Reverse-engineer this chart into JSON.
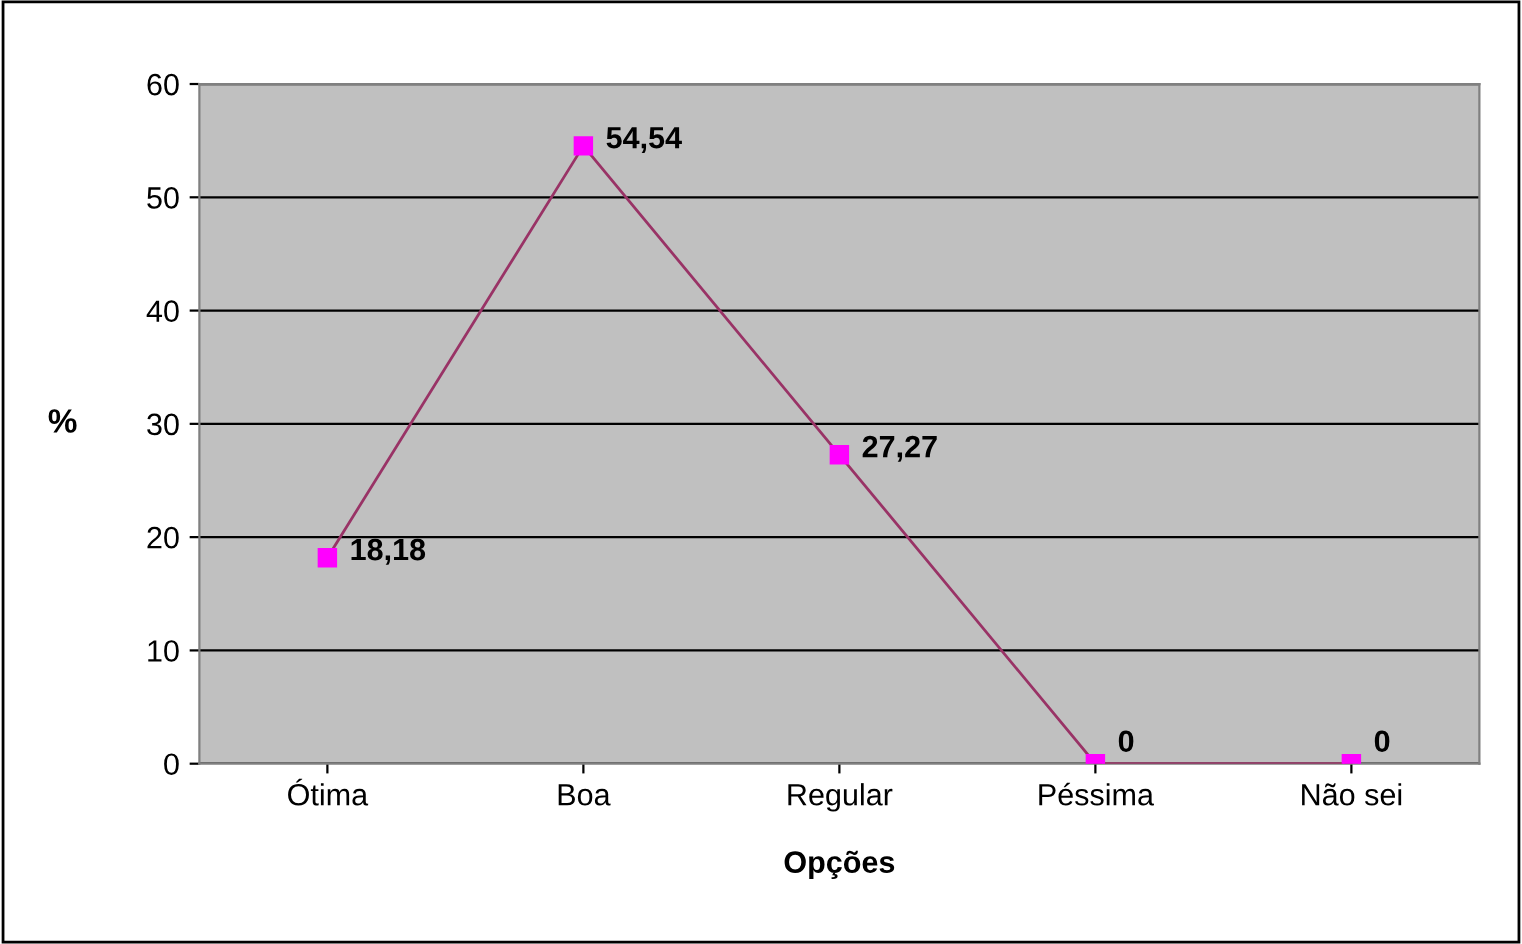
{
  "chart_data": {
    "type": "line",
    "xlabel": "Opções",
    "ylabel": "%",
    "categories": [
      "Ótima",
      "Boa",
      "Regular",
      "Péssima",
      "Não sei"
    ],
    "series": [
      {
        "color": "#993366",
        "values": [
          18.18,
          54.54,
          27.27,
          0,
          0
        ],
        "value_labels": [
          "18,18",
          "54,54",
          "27,27",
          "0",
          "0"
        ]
      }
    ],
    "ylim": [
      0,
      60
    ],
    "yticks": [
      0,
      10,
      20,
      30,
      40,
      50,
      60
    ],
    "grid": "y",
    "marker": "square",
    "legend": false
  }
}
